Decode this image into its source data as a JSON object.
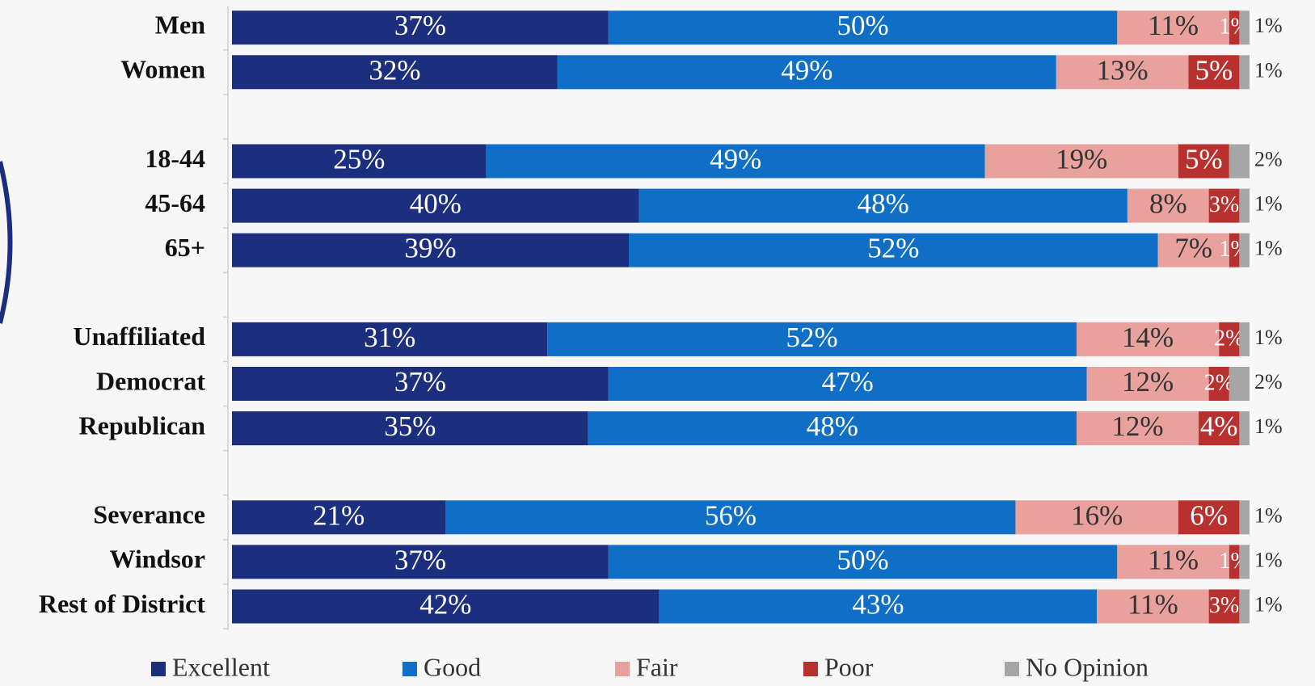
{
  "chart_data": {
    "type": "stacked_bar_horizontal",
    "categories": [
      "Men",
      "Women",
      null,
      "18-44",
      "45-64",
      "65+",
      null,
      "Unaffiliated",
      "Democrat",
      "Republican",
      null,
      "Severance",
      "Windsor",
      "Rest of District"
    ],
    "xlim": [
      0,
      100
    ],
    "legend": "bottom",
    "series": [
      {
        "name": "Excellent",
        "color": "#1b2f7e",
        "values": [
          37,
          32,
          null,
          25,
          40,
          39,
          null,
          31,
          37,
          35,
          null,
          21,
          37,
          42
        ],
        "value_labels": [
          "37%",
          "32%",
          null,
          "25%",
          "40%",
          "39%",
          null,
          "31%",
          "37%",
          "35%",
          null,
          "21%",
          "37%",
          "42%"
        ]
      },
      {
        "name": "Good",
        "color": "#0f6fc6",
        "values": [
          50,
          49,
          null,
          49,
          48,
          52,
          null,
          52,
          47,
          48,
          null,
          56,
          50,
          43
        ],
        "value_labels": [
          "50%",
          "49%",
          null,
          "49%",
          "48%",
          "52%",
          null,
          "52%",
          "47%",
          "48%",
          null,
          "56%",
          "50%",
          "43%"
        ]
      },
      {
        "name": "Fair",
        "color": "#e8a19d",
        "values": [
          11,
          13,
          null,
          19,
          8,
          7,
          null,
          14,
          12,
          12,
          null,
          16,
          11,
          11
        ],
        "value_labels": [
          "11%",
          "13%",
          null,
          "19%",
          "8%",
          "7%",
          null,
          "14%",
          "12%",
          "12%",
          null,
          "16%",
          "11%",
          "11%"
        ]
      },
      {
        "name": "Poor",
        "color": "#b8312f",
        "values": [
          1,
          5,
          null,
          5,
          3,
          1,
          null,
          2,
          2,
          4,
          null,
          6,
          1,
          3
        ],
        "value_labels": [
          "1%",
          "5%",
          null,
          "5%",
          "3%",
          "1%",
          null,
          "2%",
          "2%",
          "4%",
          null,
          "6%",
          "1%",
          "3%"
        ]
      },
      {
        "name": "No Opinion",
        "color": "#a6a6a6",
        "values": [
          1,
          1,
          null,
          2,
          1,
          1,
          null,
          1,
          2,
          1,
          null,
          1,
          1,
          1
        ],
        "value_labels": [
          "1%",
          "1%",
          null,
          "2%",
          "1%",
          "1%",
          null,
          "1%",
          "2%",
          "1%",
          null,
          "1%",
          "1%",
          "1%"
        ]
      }
    ]
  }
}
